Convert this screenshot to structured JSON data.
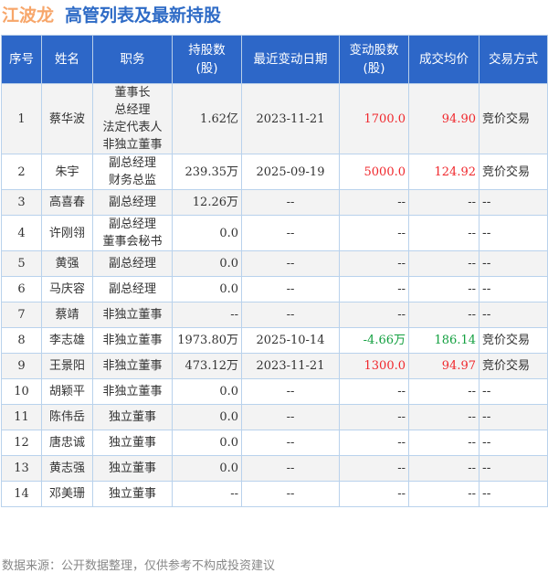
{
  "title": {
    "company": "江波龙",
    "subtitle": "高管列表及最新持股"
  },
  "columns": [
    "序号",
    "姓名",
    "职务",
    "持股数\n(股)",
    "最近变动日期",
    "变动股数\n(股)",
    "成交均价",
    "交易方式"
  ],
  "rows": [
    {
      "no": "1",
      "name": "蔡华波",
      "position": "董事长\n总经理\n法定代表人\n非独立董事",
      "shares": "1.62亿",
      "date": "2023-11-21",
      "change": "1700.0",
      "price": "94.90",
      "method": "竞价交易",
      "dir": "up"
    },
    {
      "no": "2",
      "name": "朱宇",
      "position": "副总经理\n财务总监",
      "shares": "239.35万",
      "date": "2025-09-19",
      "change": "5000.0",
      "price": "124.92",
      "method": "竞价交易",
      "dir": "up"
    },
    {
      "no": "3",
      "name": "高喜春",
      "position": "副总经理",
      "shares": "12.26万",
      "date": "--",
      "change": "--",
      "price": "--",
      "method": "--",
      "dir": ""
    },
    {
      "no": "4",
      "name": "许刚翎",
      "position": "副总经理\n董事会秘书",
      "shares": "0.0",
      "date": "--",
      "change": "--",
      "price": "--",
      "method": "--",
      "dir": ""
    },
    {
      "no": "5",
      "name": "黄强",
      "position": "副总经理",
      "shares": "0.0",
      "date": "--",
      "change": "--",
      "price": "--",
      "method": "--",
      "dir": ""
    },
    {
      "no": "6",
      "name": "马庆容",
      "position": "副总经理",
      "shares": "0.0",
      "date": "--",
      "change": "--",
      "price": "--",
      "method": "--",
      "dir": ""
    },
    {
      "no": "7",
      "name": "蔡靖",
      "position": "非独立董事",
      "shares": "--",
      "date": "--",
      "change": "--",
      "price": "--",
      "method": "--",
      "dir": ""
    },
    {
      "no": "8",
      "name": "李志雄",
      "position": "非独立董事",
      "shares": "1973.80万",
      "date": "2025-10-14",
      "change": "-4.66万",
      "price": "186.14",
      "method": "竞价交易",
      "dir": "down"
    },
    {
      "no": "9",
      "name": "王景阳",
      "position": "非独立董事",
      "shares": "473.12万",
      "date": "2023-11-21",
      "change": "1300.0",
      "price": "94.97",
      "method": "竞价交易",
      "dir": "up"
    },
    {
      "no": "10",
      "name": "胡颖平",
      "position": "非独立董事",
      "shares": "0.0",
      "date": "--",
      "change": "--",
      "price": "--",
      "method": "--",
      "dir": ""
    },
    {
      "no": "11",
      "name": "陈伟岳",
      "position": "独立董事",
      "shares": "0.0",
      "date": "--",
      "change": "--",
      "price": "--",
      "method": "--",
      "dir": ""
    },
    {
      "no": "12",
      "name": "唐忠诚",
      "position": "独立董事",
      "shares": "0.0",
      "date": "--",
      "change": "--",
      "price": "--",
      "method": "--",
      "dir": ""
    },
    {
      "no": "13",
      "name": "黄志强",
      "position": "独立董事",
      "shares": "0.0",
      "date": "--",
      "change": "--",
      "price": "--",
      "method": "--",
      "dir": ""
    },
    {
      "no": "14",
      "name": "邓美珊",
      "position": "独立董事",
      "shares": "--",
      "date": "--",
      "change": "--",
      "price": "--",
      "method": "--",
      "dir": ""
    }
  ],
  "colors": {
    "up": "#f0282d",
    "down": "#13a040",
    "header": "#2d67c8"
  },
  "footer": "数据来源：公开数据整理，仅供参考不构成投资建议"
}
